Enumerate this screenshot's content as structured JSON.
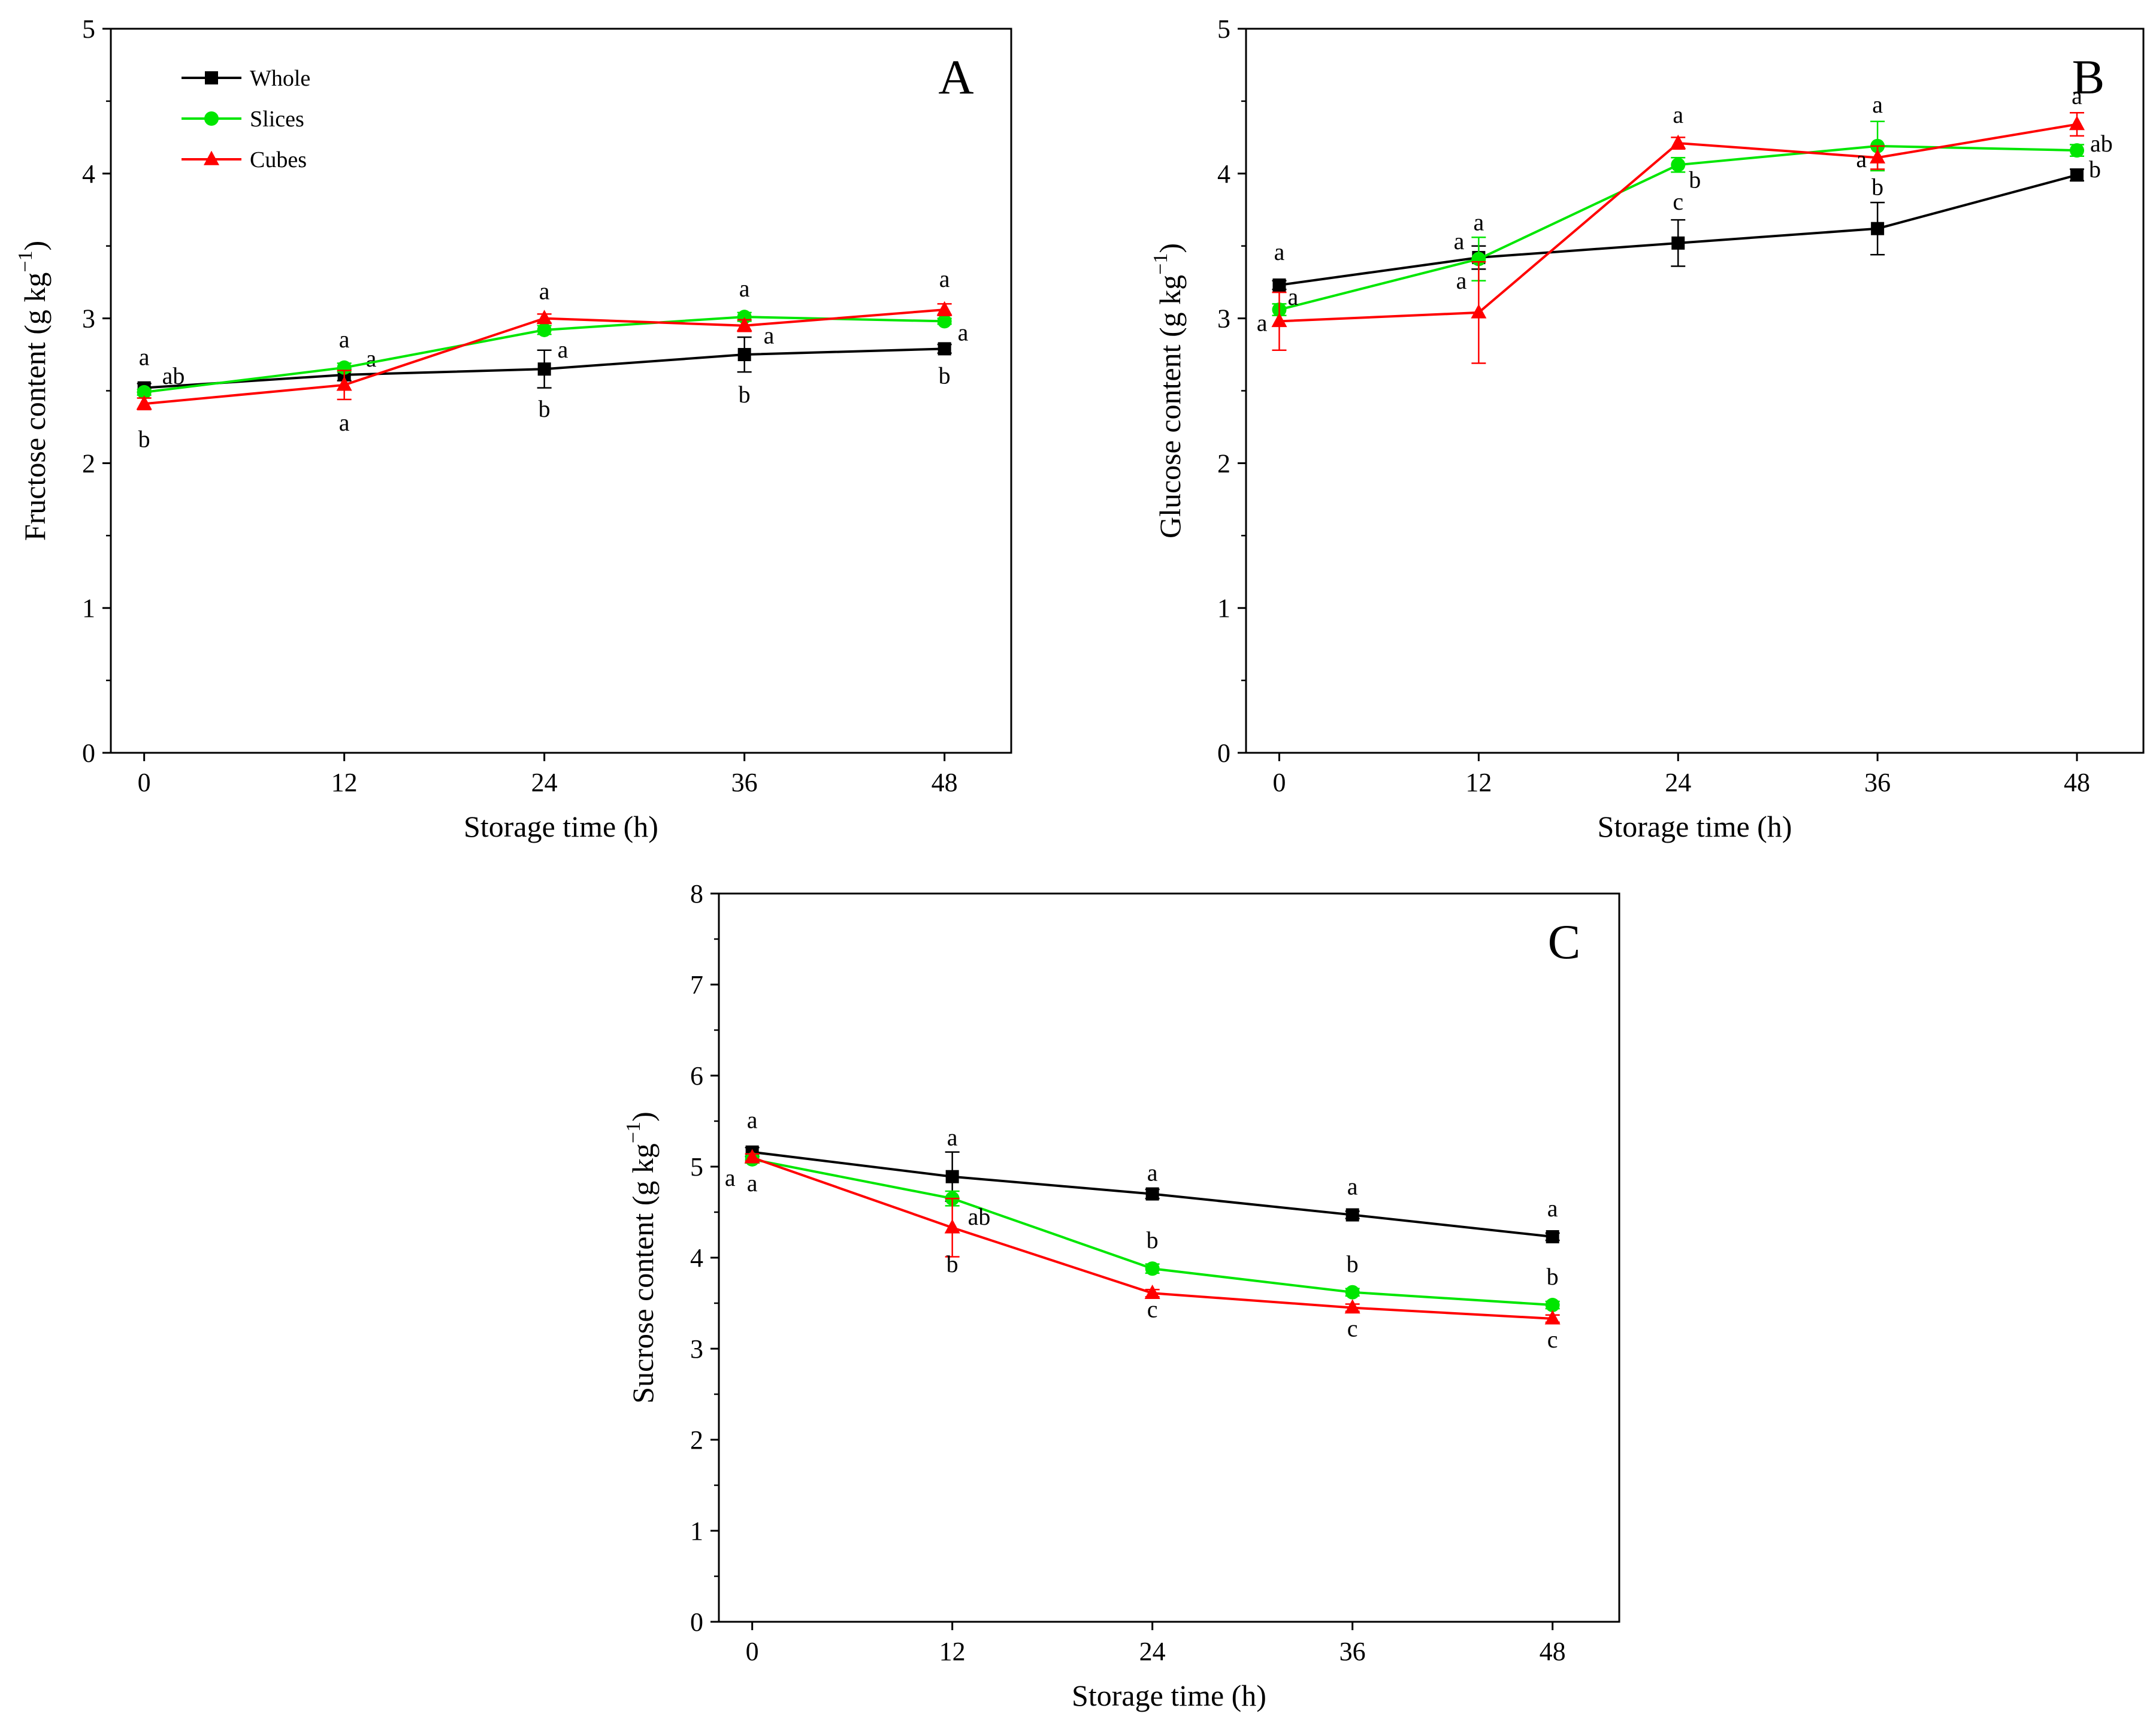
{
  "colors": {
    "whole": "#000000",
    "slices": "#00e600",
    "cubes": "#ff0000"
  },
  "legend": [
    {
      "key": "whole",
      "label": "Whole",
      "marker": "square"
    },
    {
      "key": "slices",
      "label": "Slices",
      "marker": "circle"
    },
    {
      "key": "cubes",
      "label": "Cubes",
      "marker": "triangle"
    }
  ],
  "chart_data": [
    {
      "id": "A",
      "panel_label": "A",
      "type": "line",
      "xlabel": "Storage time (h)",
      "ylabel_main": "Fructose content (g kg",
      "ylabel_sup": "−1",
      "ylabel_end": ")",
      "x": [
        0,
        12,
        24,
        36,
        48
      ],
      "xlim": [
        -2,
        52
      ],
      "ylim": [
        0,
        5
      ],
      "xticks": [
        0,
        12,
        24,
        36,
        48
      ],
      "yticks": [
        0,
        1,
        2,
        3,
        4,
        5
      ],
      "series": [
        {
          "key": "whole",
          "name": "Whole",
          "values": [
            2.52,
            2.61,
            2.65,
            2.75,
            2.79
          ],
          "errors": [
            0.03,
            0.04,
            0.13,
            0.12,
            0.03
          ],
          "letters": [
            "a",
            "a",
            "b",
            "b",
            "b"
          ]
        },
        {
          "key": "slices",
          "name": "Slices",
          "values": [
            2.49,
            2.66,
            2.92,
            3.01,
            2.98
          ],
          "errors": [
            0.02,
            0.03,
            0.03,
            0.03,
            0.02
          ],
          "letters": [
            "ab",
            "a",
            "a",
            "a",
            "a"
          ]
        },
        {
          "key": "cubes",
          "name": "Cubes",
          "values": [
            2.41,
            2.54,
            3.0,
            2.95,
            3.06
          ],
          "errors": [
            0.04,
            0.1,
            0.03,
            0.04,
            0.04
          ],
          "letters": [
            "b",
            "a",
            "a",
            "a",
            "a"
          ]
        }
      ]
    },
    {
      "id": "B",
      "panel_label": "B",
      "type": "line",
      "xlabel": "Storage time (h)",
      "ylabel_main": "Glucose content (g kg",
      "ylabel_sup": "−1",
      "ylabel_end": ")",
      "x": [
        0,
        12,
        24,
        36,
        48
      ],
      "xlim": [
        -2,
        52
      ],
      "ylim": [
        0,
        5
      ],
      "xticks": [
        0,
        12,
        24,
        36,
        48
      ],
      "yticks": [
        0,
        1,
        2,
        3,
        4,
        5
      ],
      "series": [
        {
          "key": "whole",
          "name": "Whole",
          "values": [
            3.23,
            3.42,
            3.52,
            3.62,
            3.99
          ],
          "errors": [
            0.03,
            0.08,
            0.16,
            0.18,
            0.04
          ],
          "letters": [
            "a",
            "a",
            "c",
            "b",
            "b"
          ]
        },
        {
          "key": "slices",
          "name": "Slices",
          "values": [
            3.06,
            3.41,
            4.06,
            4.19,
            4.16
          ],
          "errors": [
            0.04,
            0.15,
            0.05,
            0.17,
            0.04
          ],
          "letters": [
            "a",
            "a",
            "b",
            "a",
            "ab"
          ]
        },
        {
          "key": "cubes",
          "name": "Cubes",
          "values": [
            2.98,
            3.04,
            4.21,
            4.11,
            4.34
          ],
          "errors": [
            0.2,
            0.35,
            0.04,
            0.08,
            0.08
          ],
          "letters": [
            "a",
            "a",
            "a",
            "a",
            "a"
          ]
        }
      ]
    },
    {
      "id": "C",
      "panel_label": "C",
      "type": "line",
      "xlabel": "Storage time (h)",
      "ylabel_main": "Sucrose content (g kg",
      "ylabel_sup": "−1",
      "ylabel_end": ")",
      "x": [
        0,
        12,
        24,
        36,
        48
      ],
      "xlim": [
        -2,
        52
      ],
      "ylim": [
        0,
        8
      ],
      "xticks": [
        0,
        12,
        24,
        36,
        48
      ],
      "yticks": [
        0,
        1,
        2,
        3,
        4,
        5,
        6,
        7,
        8
      ],
      "series": [
        {
          "key": "whole",
          "name": "Whole",
          "values": [
            5.16,
            4.89,
            4.7,
            4.47,
            4.23
          ],
          "errors": [
            0.05,
            0.27,
            0.05,
            0.04,
            0.04
          ],
          "letters": [
            "a",
            "a",
            "a",
            "a",
            "a"
          ]
        },
        {
          "key": "slices",
          "name": "Slices",
          "values": [
            5.08,
            4.65,
            3.88,
            3.62,
            3.48
          ],
          "errors": [
            0.04,
            0.08,
            0.05,
            0.04,
            0.04
          ],
          "letters": [
            "a",
            "ab",
            "b",
            "b",
            "b"
          ]
        },
        {
          "key": "cubes",
          "name": "Cubes",
          "values": [
            5.1,
            4.33,
            3.61,
            3.45,
            3.33
          ],
          "errors": [
            0.04,
            0.32,
            0.04,
            0.04,
            0.04
          ],
          "letters": [
            "a",
            "b",
            "c",
            "c",
            "c"
          ]
        }
      ]
    }
  ]
}
